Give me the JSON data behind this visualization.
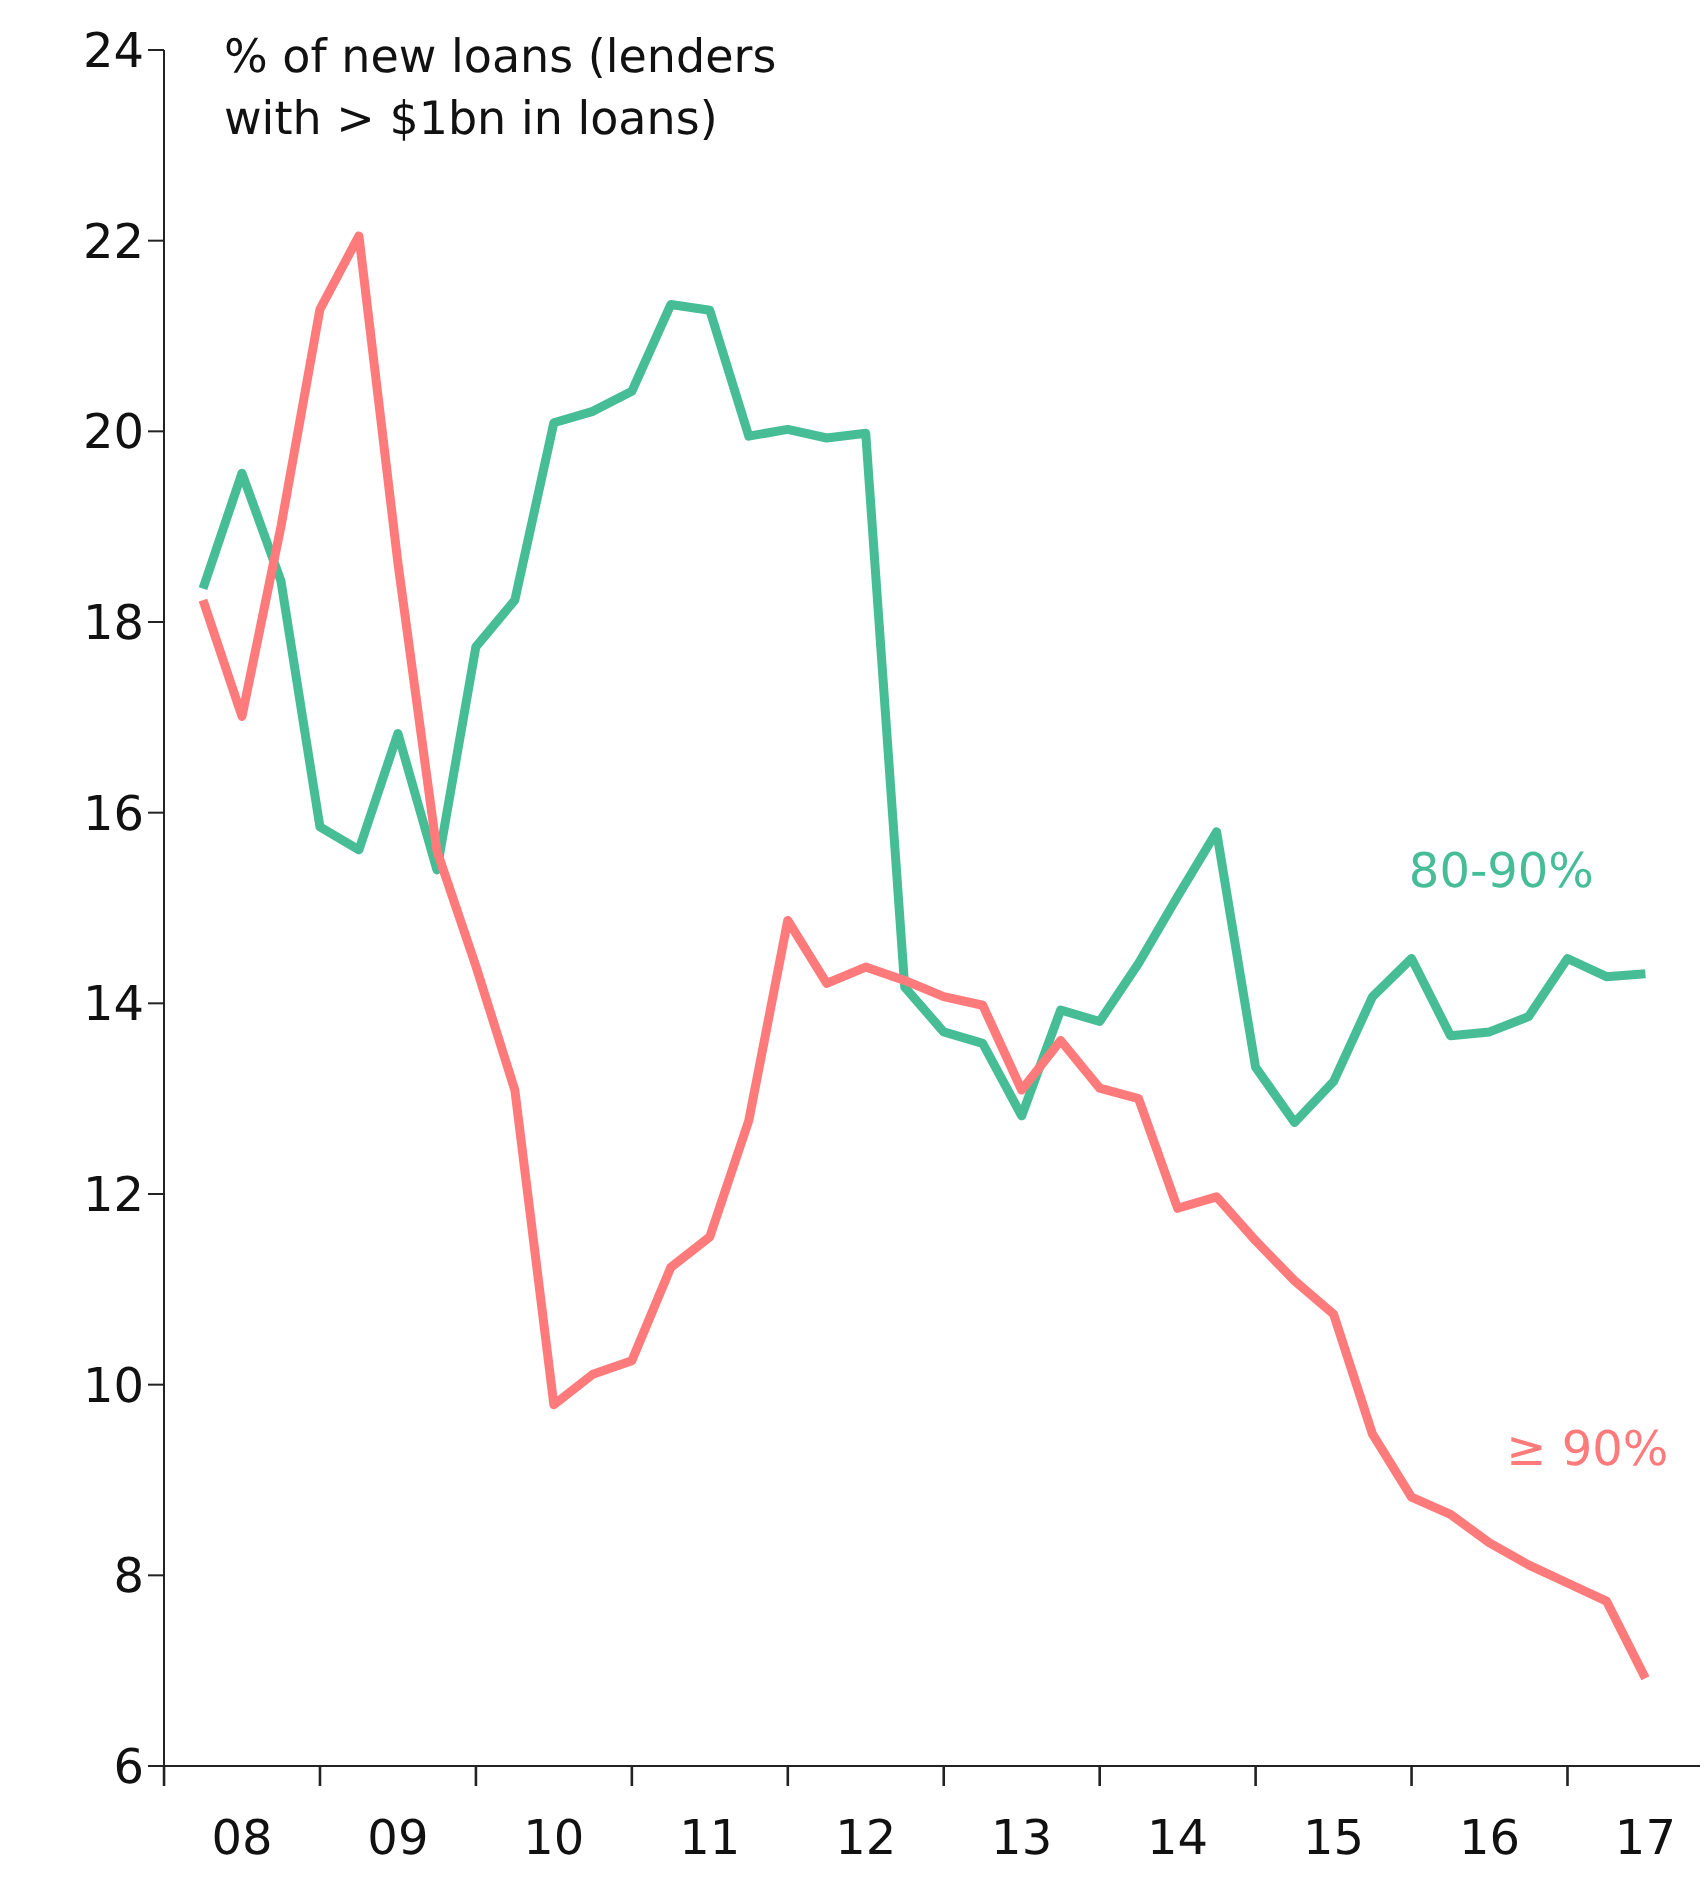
{
  "chart_data": {
    "type": "line",
    "ylabel": "% of new loans (lenders with > $1bn in loans)",
    "categories": [
      null,
      "08",
      null,
      null,
      null,
      "09",
      null,
      null,
      null,
      "10",
      null,
      null,
      null,
      "11",
      null,
      null,
      null,
      "12",
      null,
      null,
      null,
      "13",
      null,
      null,
      null,
      "14",
      null,
      null,
      null,
      "15",
      null,
      null,
      null,
      "16",
      null,
      null,
      null,
      "17"
    ],
    "series": [
      {
        "name": "80-90%",
        "color": "#47bd95",
        "values": [
          18.35,
          19.56,
          18.43,
          15.85,
          15.61,
          16.83,
          15.4,
          17.74,
          18.23,
          20.09,
          20.21,
          20.42,
          21.33,
          21.27,
          19.95,
          20.02,
          19.93,
          19.98,
          14.17,
          13.7,
          13.58,
          12.82,
          13.93,
          13.81,
          14.42,
          15.12,
          15.8,
          13.33,
          12.75,
          13.18,
          14.07,
          14.47,
          13.66,
          13.7,
          13.86,
          14.47,
          14.28,
          14.31
        ]
      },
      {
        "name": "≥ 90%",
        "color": "#ff7b7b",
        "values": [
          18.23,
          17.01,
          19.0,
          21.28,
          22.05,
          18.62,
          15.6,
          14.39,
          13.09,
          9.79,
          10.11,
          10.25,
          11.23,
          11.55,
          12.77,
          14.87,
          14.21,
          14.38,
          14.24,
          14.07,
          13.98,
          13.09,
          13.61,
          13.11,
          13.0,
          11.85,
          11.97,
          11.51,
          11.09,
          10.74,
          9.48,
          8.82,
          8.64,
          8.34,
          8.11,
          7.92,
          7.73,
          6.92
        ]
      }
    ],
    "ylim": [
      6,
      24
    ],
    "yticks": [
      6,
      8,
      10,
      12,
      14,
      16,
      18,
      20,
      22,
      24
    ],
    "grid": false,
    "legend": false,
    "marker": "none",
    "line_style": "solid"
  }
}
